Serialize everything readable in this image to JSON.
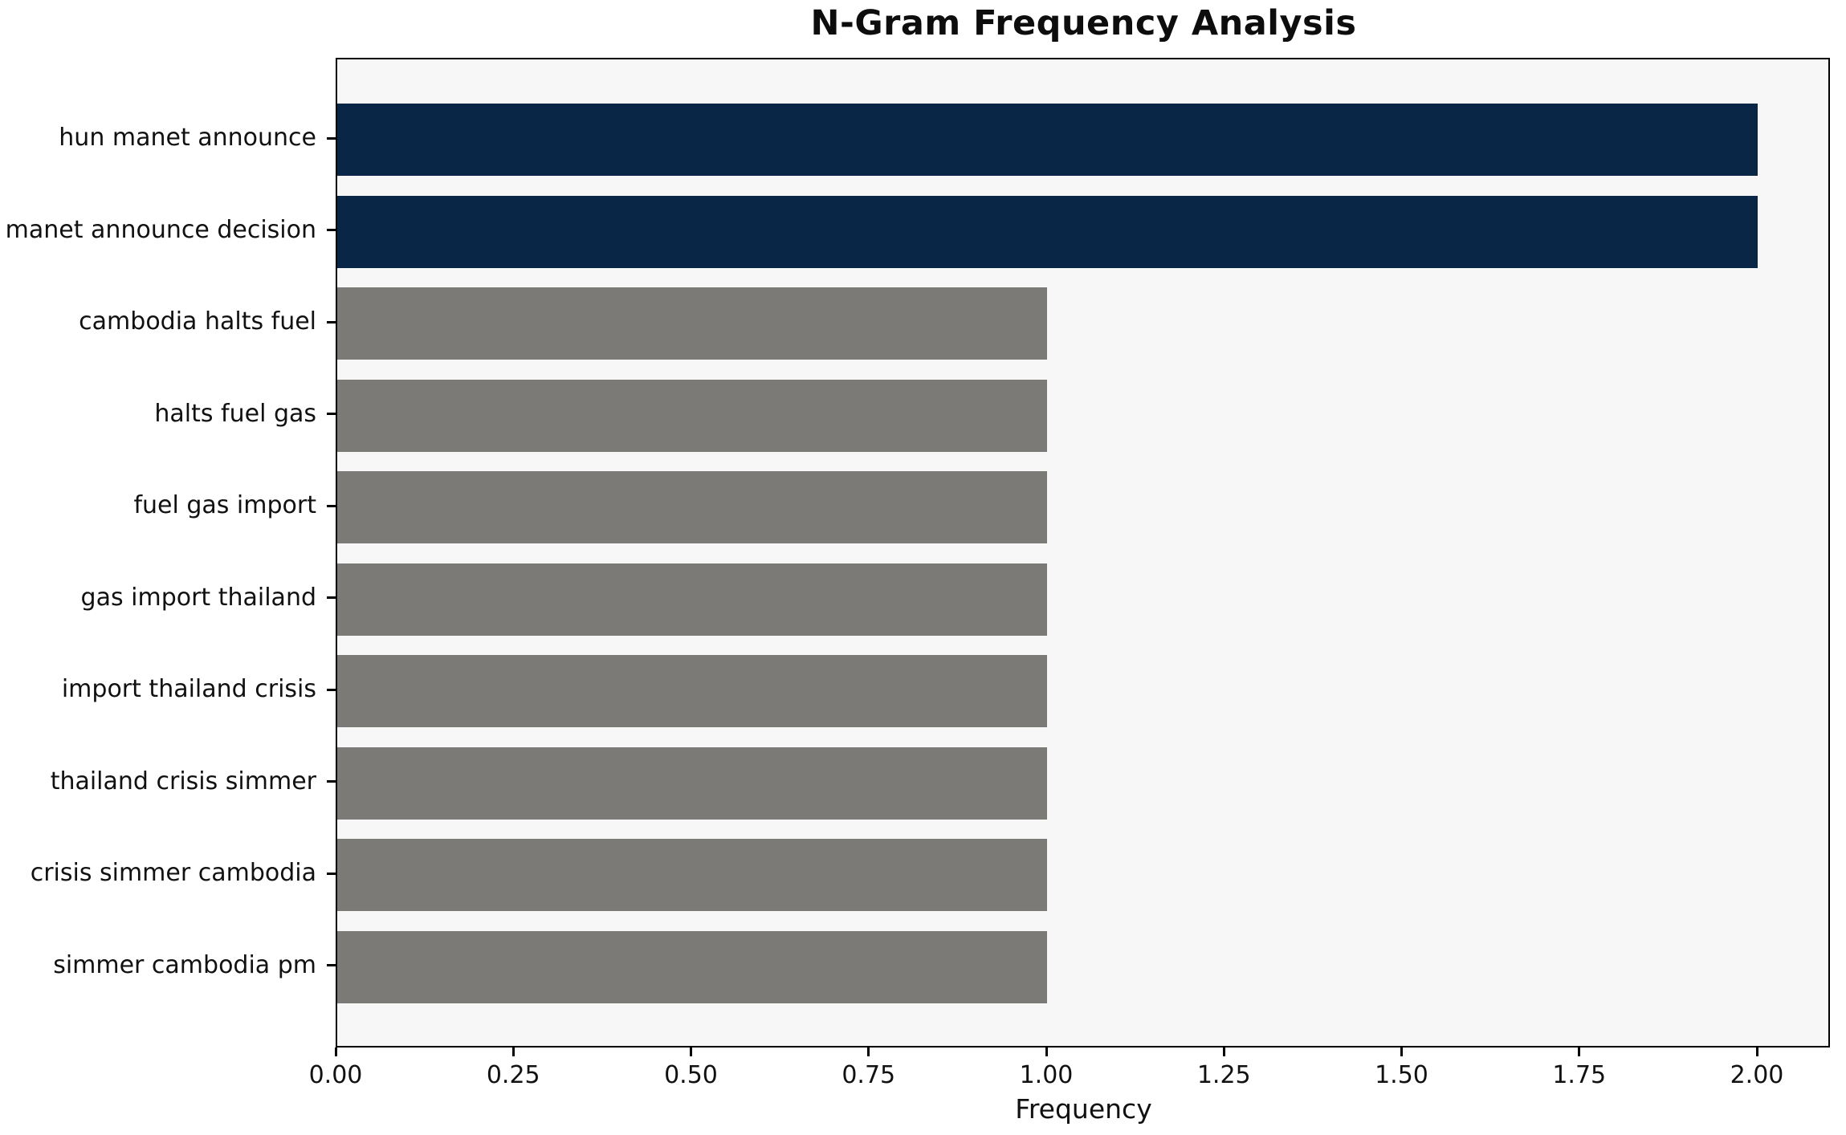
{
  "figure": {
    "background": "#ffffff",
    "plot_background": "#f8f7f7",
    "spine_color": "#000000",
    "text_color": "#111111"
  },
  "chart_data": {
    "type": "bar",
    "orientation": "horizontal",
    "title": "N-Gram Frequency Analysis",
    "xlabel": "Frequency",
    "ylabel": "",
    "categories": [
      "hun manet announce",
      "manet announce decision",
      "cambodia halts fuel",
      "halts fuel gas",
      "fuel gas import",
      "gas import thailand",
      "import thailand crisis",
      "thailand crisis simmer",
      "crisis simmer cambodia",
      "simmer cambodia pm"
    ],
    "values": [
      2,
      2,
      1,
      1,
      1,
      1,
      1,
      1,
      1,
      1
    ],
    "bar_colors": [
      "#0a2647",
      "#0a2647",
      "#7b7a76",
      "#7b7a76",
      "#7b7a76",
      "#7b7a76",
      "#7b7a76",
      "#7b7a76",
      "#7b7a76",
      "#7b7a76"
    ],
    "highlight_color": "#0a2647",
    "default_color": "#7b7a76",
    "xlim": [
      0,
      2.1
    ],
    "x_ticks": [
      0,
      0.25,
      0.5,
      0.75,
      1.0,
      1.25,
      1.5,
      1.75,
      2.0
    ],
    "x_tick_labels": [
      "0.00",
      "0.25",
      "0.50",
      "0.75",
      "1.00",
      "1.25",
      "1.50",
      "1.75",
      "2.00"
    ],
    "grid": false,
    "legend": null
  }
}
